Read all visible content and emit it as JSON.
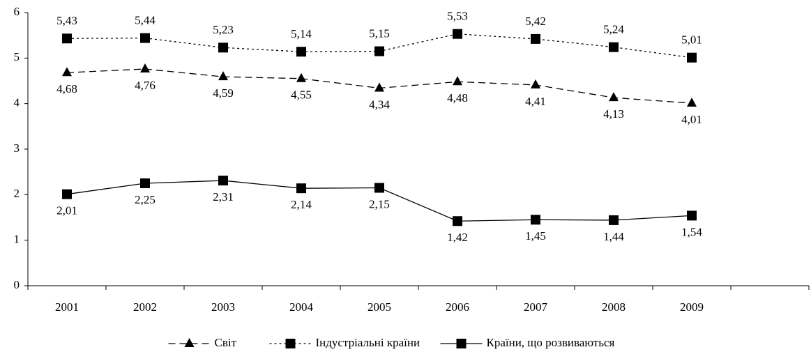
{
  "chart_data": {
    "type": "line",
    "categories": [
      "2001",
      "2002",
      "2003",
      "2004",
      "2005",
      "2006",
      "2007",
      "2008",
      "2009",
      null
    ],
    "ylim": [
      0,
      6
    ],
    "yticks": [
      0,
      1,
      2,
      3,
      4,
      5,
      6
    ],
    "grid": false,
    "legend": "bottom",
    "series": [
      {
        "name": "Світ",
        "color": "#000000",
        "marker": "triangle",
        "dash": "dashed",
        "label_position": "below",
        "values": [
          4.68,
          4.76,
          4.59,
          4.55,
          4.34,
          4.48,
          4.41,
          4.13,
          4.01,
          null
        ],
        "value_labels": [
          "4,68",
          "4,76",
          "4,59",
          "4,55",
          "4,34",
          "4,48",
          "4,41",
          "4,13",
          "4,01",
          null
        ]
      },
      {
        "name": "Індустріальні країни",
        "color": "#000000",
        "marker": "square",
        "dash": "dotted",
        "label_position": "above",
        "values": [
          5.43,
          5.44,
          5.23,
          5.14,
          5.15,
          5.53,
          5.42,
          5.24,
          5.01,
          null
        ],
        "value_labels": [
          "5,43",
          "5,44",
          "5,23",
          "5,14",
          "5,15",
          "5,53",
          "5,42",
          "5,24",
          "5,01",
          null
        ]
      },
      {
        "name": "Країни, що розвиваються",
        "color": "#000000",
        "marker": "square",
        "dash": "solid",
        "label_position": "below",
        "values": [
          2.01,
          2.25,
          2.31,
          2.14,
          2.15,
          1.42,
          1.45,
          1.44,
          1.54,
          null
        ],
        "value_labels": [
          "2,01",
          "2,25",
          "2,31",
          "2,14",
          "2,15",
          "1,42",
          "1,45",
          "1,44",
          "1,54",
          null
        ]
      }
    ]
  }
}
